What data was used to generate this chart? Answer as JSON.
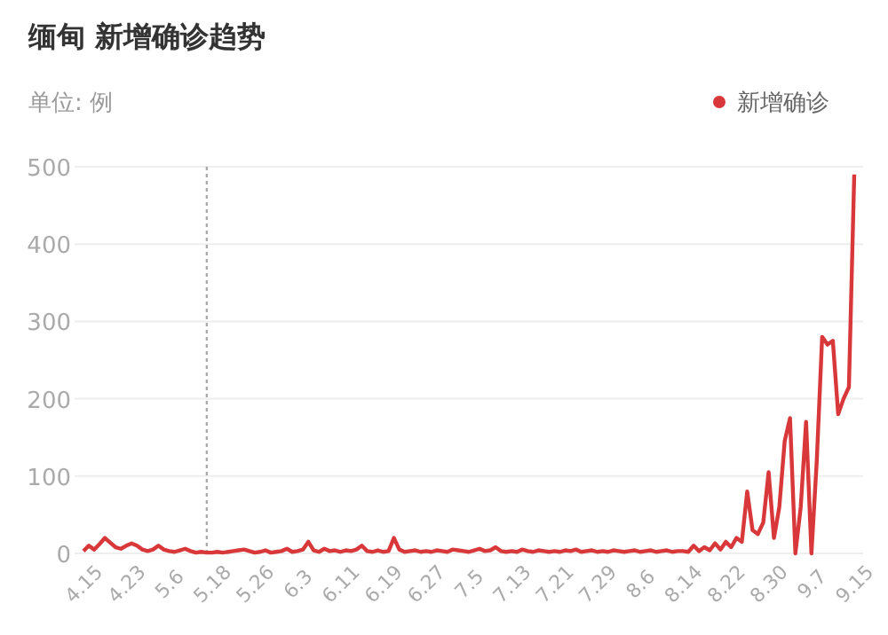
{
  "chart_data": {
    "type": "line",
    "title": "缅甸 新增确诊趋势",
    "subtitle": "单位: 例",
    "categories": [
      "4.15",
      null,
      null,
      null,
      null,
      null,
      null,
      null,
      "4.23",
      null,
      null,
      null,
      null,
      null,
      null,
      null,
      "5.6",
      null,
      null,
      null,
      null,
      null,
      null,
      null,
      "5.18",
      null,
      null,
      null,
      null,
      null,
      null,
      null,
      "5.26",
      null,
      null,
      null,
      null,
      null,
      null,
      null,
      "6.3",
      null,
      null,
      null,
      null,
      null,
      null,
      null,
      "6.11",
      null,
      null,
      null,
      null,
      null,
      null,
      null,
      "6.19",
      null,
      null,
      null,
      null,
      null,
      null,
      null,
      "6.27",
      null,
      null,
      null,
      null,
      null,
      null,
      null,
      "7.5",
      null,
      null,
      null,
      null,
      null,
      null,
      null,
      "7.13",
      null,
      null,
      null,
      null,
      null,
      null,
      null,
      "7.21",
      null,
      null,
      null,
      null,
      null,
      null,
      null,
      "7.29",
      null,
      null,
      null,
      null,
      null,
      null,
      null,
      "8.6",
      null,
      null,
      null,
      null,
      null,
      null,
      null,
      "8.14",
      null,
      null,
      null,
      null,
      null,
      null,
      null,
      "8.22",
      null,
      null,
      null,
      null,
      null,
      null,
      null,
      "8.30",
      null,
      null,
      null,
      null,
      null,
      null,
      null,
      "9.7",
      null,
      null,
      null,
      null,
      null,
      null,
      null,
      "9.15"
    ],
    "series": [
      {
        "name": "新增确诊",
        "color": "#d9383a",
        "values": [
          3,
          10,
          5,
          12,
          20,
          14,
          8,
          6,
          10,
          13,
          10,
          5,
          3,
          5,
          10,
          5,
          3,
          2,
          4,
          6,
          3,
          1,
          2,
          1,
          1,
          2,
          1,
          2,
          3,
          4,
          5,
          3,
          1,
          2,
          4,
          1,
          2,
          3,
          6,
          2,
          3,
          5,
          15,
          4,
          2,
          6,
          3,
          4,
          2,
          4,
          3,
          5,
          10,
          3,
          2,
          4,
          2,
          3,
          20,
          5,
          2,
          3,
          4,
          2,
          3,
          2,
          4,
          3,
          2,
          5,
          4,
          3,
          2,
          4,
          6,
          3,
          4,
          8,
          3,
          2,
          3,
          2,
          5,
          3,
          2,
          4,
          3,
          2,
          3,
          2,
          4,
          3,
          5,
          2,
          3,
          4,
          2,
          3,
          2,
          4,
          3,
          2,
          3,
          4,
          2,
          3,
          4,
          2,
          3,
          4,
          2,
          3,
          3,
          2,
          10,
          3,
          8,
          4,
          13,
          5,
          15,
          8,
          20,
          15,
          80,
          30,
          25,
          40,
          105,
          20,
          60,
          145,
          175,
          0,
          60,
          170,
          0,
          120,
          280,
          270,
          275,
          180,
          200,
          215,
          490
        ]
      }
    ],
    "ylim": [
      0,
      500
    ],
    "yticks": [
      0,
      100,
      200,
      300,
      400,
      500
    ],
    "grid": "y",
    "legend": "top right",
    "marker": "none"
  }
}
